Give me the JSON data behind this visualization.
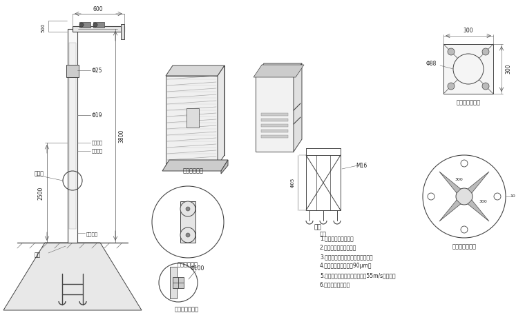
{
  "bg_color": "#ffffff",
  "line_color": "#444444",
  "text_color": "#222222",
  "labels": {
    "waterproof_box": "防水筱放大图",
    "repair_hole_detail": "维修孔放大图",
    "flange_detail": "桥机法兰放大图",
    "ground_cage": "地笼",
    "base_flange_front": "底座法兰正视图",
    "base_flange_large": "底座法兰放大图",
    "repair_hole_label": "维修孔",
    "base_flange_label": "底座法兰",
    "ground_cage_label": "地笼",
    "upper_color": "上部色调",
    "lower_color": "下部色调",
    "note_title": "说明",
    "notes": [
      "1.主干为国标镖锡管。",
      "2.上下法兰加强隆连接。",
      "3.喷涂后不再进行任何加工和焊接。",
      "4.钉管镖锡锌层厚度为90μm。",
      "5.立杆、底膇和其它部件应能抗55m/s的风速。",
      "6.接地、避雷针可折"
    ]
  },
  "dims": {
    "600": "600",
    "500": "500",
    "phi25": "Φ25",
    "phi19": "Φ19",
    "phi88": "Φ88",
    "phi100": "Φ100",
    "3800": "3800",
    "2500": "2500",
    "300": "300",
    "M16": "M16",
    "phi05": "Φ05"
  }
}
